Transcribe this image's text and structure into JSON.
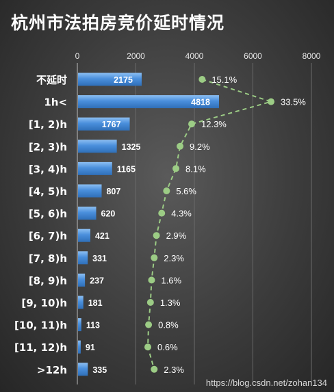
{
  "title": "杭州市法拍房竞价延时情况",
  "watermark": "https://blog.csdn.net/zohan134",
  "colors": {
    "bar": "#4a8fdc",
    "bar_light": "#7bb3ee",
    "line": "#9ccc85",
    "text": "#ffffff",
    "grid": "#6a6a6a"
  },
  "chart_data": {
    "type": "bar",
    "orientation": "horizontal",
    "categories": [
      "不延时",
      "1h<",
      "[1, 2)h",
      "[2, 3)h",
      "[3, 4)h",
      "[4, 5)h",
      "[5, 6)h",
      "[6, 7)h",
      "[7, 8)h",
      "[8, 9)h",
      "[9, 10)h",
      "[10, 11)h",
      "[11, 12)h",
      ">12h"
    ],
    "values": [
      2175,
      4818,
      1767,
      1325,
      1165,
      807,
      620,
      421,
      331,
      237,
      181,
      113,
      91,
      335
    ],
    "value_labels": [
      "2175",
      "4818",
      "1767",
      "1325",
      "1165",
      "807",
      "620",
      "421",
      "331",
      "237",
      "181",
      "113",
      "91",
      "335"
    ],
    "percent_series": [
      15.1,
      33.5,
      12.3,
      9.2,
      8.1,
      5.6,
      4.3,
      2.9,
      2.3,
      1.6,
      1.3,
      0.8,
      0.6,
      2.3
    ],
    "percent_labels": [
      "15.1%",
      "33.5%",
      "12.3%",
      "9.2%",
      "8.1%",
      "5.6%",
      "4.3%",
      "2.9%",
      "2.3%",
      "1.6%",
      "1.3%",
      "0.8%",
      "0.6%",
      "2.3%"
    ],
    "xlim": [
      0,
      8000
    ],
    "xticks": [
      0,
      2000,
      4000,
      6000,
      8000
    ],
    "xtick_labels": [
      "0",
      "2000",
      "4000",
      "6000",
      "8000"
    ],
    "grid": true,
    "axis_position": "top"
  }
}
